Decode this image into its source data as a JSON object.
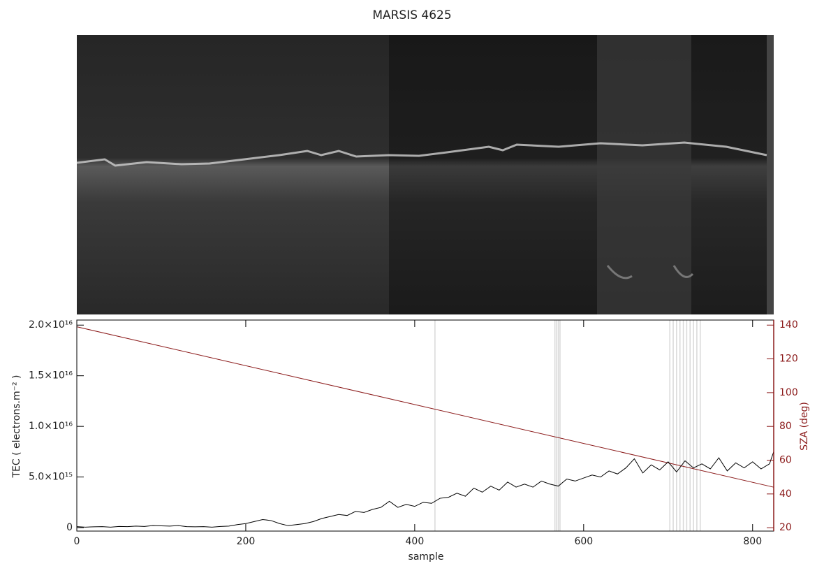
{
  "chart_data": {
    "type": "line",
    "title": "MARSIS 4625",
    "xlabel": "sample",
    "ylabel": "TEC ( electrons.m⁻² )",
    "y2label": "SZA (deg)",
    "xlim": [
      0,
      825
    ],
    "xticks": [
      0,
      200,
      400,
      600,
      800
    ],
    "ylim": [
      -340000000000000.0,
      2.05e+16
    ],
    "yticks": [
      0,
      {
        "value": 5000000000000000.0,
        "label": "5.0×10¹⁵"
      },
      {
        "value": 1e+16,
        "label": "1.0×10¹⁶"
      },
      {
        "value": 1.5e+16,
        "label": "1.5×10¹⁶"
      },
      {
        "value": 2e+16,
        "label": "2.0×10¹⁶"
      }
    ],
    "y2lim": [
      18,
      143
    ],
    "y2ticks": [
      20,
      40,
      60,
      80,
      100,
      120,
      140
    ],
    "y2color": "#8b1a1a",
    "marker_lines": {
      "color": "#d8d8d8",
      "x": [
        424,
        566,
        568,
        570,
        572,
        702,
        706,
        710,
        714,
        718,
        722,
        726,
        730,
        734,
        738
      ]
    },
    "series": [
      {
        "color": "#000000",
        "x": [
          0,
          10,
          20,
          30,
          40,
          50,
          60,
          70,
          80,
          90,
          100,
          110,
          120,
          130,
          140,
          150,
          160,
          170,
          180,
          190,
          200,
          210,
          220,
          230,
          240,
          250,
          260,
          270,
          280,
          290,
          300,
          310,
          320,
          330,
          340,
          350,
          360,
          370,
          380,
          390,
          400,
          410,
          420,
          430,
          440,
          450,
          460,
          470,
          480,
          490,
          500,
          510,
          520,
          530,
          540,
          550,
          560,
          570,
          580,
          590,
          600,
          610,
          620,
          630,
          640,
          650,
          660,
          670,
          680,
          690,
          700,
          710,
          720,
          730,
          740,
          750,
          760,
          770,
          780,
          790,
          800,
          810,
          820,
          825
        ],
        "values": [
          100000000000000.0,
          50000000000000.0,
          80000000000000.0,
          100000000000000.0,
          50000000000000.0,
          120000000000000.0,
          100000000000000.0,
          150000000000000.0,
          120000000000000.0,
          200000000000000.0,
          180000000000000.0,
          150000000000000.0,
          200000000000000.0,
          100000000000000.0,
          80000000000000.0,
          100000000000000.0,
          50000000000000.0,
          120000000000000.0,
          150000000000000.0,
          300000000000000.0,
          400000000000000.0,
          600000000000000.0,
          800000000000000.0,
          700000000000000.0,
          400000000000000.0,
          200000000000000.0,
          300000000000000.0,
          400000000000000.0,
          600000000000000.0,
          900000000000000.0,
          1100000000000000.0,
          1300000000000000.0,
          1200000000000000.0,
          1600000000000000.0,
          1500000000000000.0,
          1800000000000000.0,
          2000000000000000.0,
          2600000000000000.0,
          2000000000000000.0,
          2300000000000000.0,
          2100000000000000.0,
          2500000000000000.0,
          2400000000000000.0,
          2900000000000000.0,
          3000000000000000.0,
          3400000000000000.0,
          3100000000000000.0,
          3900000000000000.0,
          3500000000000000.0,
          4100000000000000.0,
          3700000000000000.0,
          4500000000000000.0,
          4000000000000000.0,
          4300000000000000.0,
          4000000000000000.0,
          4600000000000000.0,
          4300000000000000.0,
          4100000000000000.0,
          4800000000000000.0,
          4600000000000000.0,
          4900000000000000.0,
          5200000000000000.0,
          5000000000000000.0,
          5600000000000000.0,
          5300000000000000.0,
          5900000000000000.0,
          6800000000000000.0,
          5400000000000000.0,
          6200000000000000.0,
          5700000000000000.0,
          6500000000000000.0,
          5500000000000000.0,
          6600000000000000.0,
          5900000000000000.0,
          6300000000000000.0,
          5800000000000000.0,
          6900000000000000.0,
          5600000000000000.0,
          6400000000000000.0,
          5900000000000000.0,
          6500000000000000.0,
          5800000000000000.0,
          6300000000000000.0,
          7500000000000000.0
        ]
      },
      {
        "color": "#8b1a1a",
        "axis": "y2",
        "x": [
          0,
          825
        ],
        "values": [
          139,
          44
        ]
      }
    ]
  }
}
